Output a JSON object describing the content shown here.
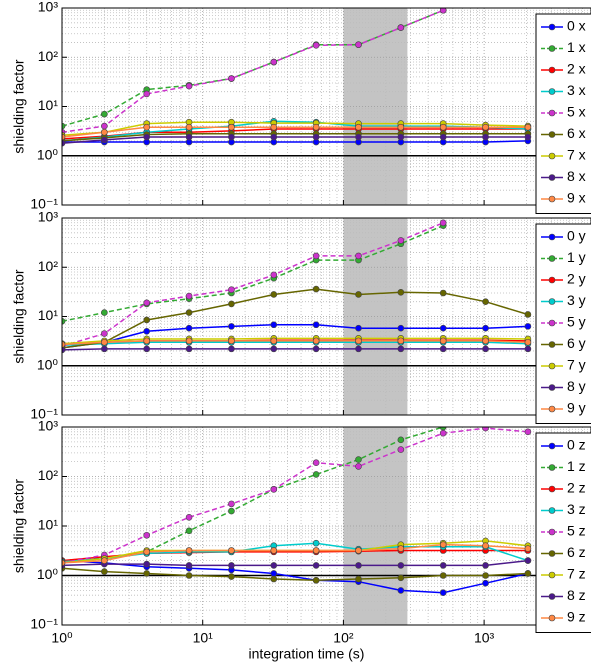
{
  "chart_data": [
    {
      "type": "line",
      "y_label": "shielding factor",
      "log_x": true,
      "log_y": true,
      "grid": true,
      "legend": "right",
      "hline": 1,
      "shaded_region": [
        100,
        285
      ],
      "x": [
        1,
        2,
        4,
        8,
        16,
        32,
        64,
        128,
        256,
        512,
        1024,
        2048
      ],
      "xlim": [
        1,
        5750
      ],
      "xticks": [
        1,
        10,
        100,
        1000
      ],
      "ylim": [
        0.1,
        1000
      ],
      "yticks": [
        {
          "value": 0.1,
          "label": "10⁻¹"
        },
        {
          "value": 1,
          "label": "10⁰"
        },
        {
          "value": 10,
          "label": "10¹"
        },
        {
          "value": 100,
          "label": "10²"
        },
        {
          "value": 1000,
          "label": "10³"
        }
      ],
      "series": [
        {
          "name": "0 x",
          "color": "#0000ff",
          "dashed": false,
          "values": [
            1.9,
            1.9,
            1.9,
            1.9,
            1.9,
            1.9,
            1.9,
            1.9,
            1.9,
            1.9,
            1.9,
            2.0
          ]
        },
        {
          "name": "1 x",
          "color": "#33aa33",
          "dashed": true,
          "values": [
            4,
            7,
            22,
            27,
            37,
            80,
            180,
            180,
            400,
            900,
            null,
            null
          ]
        },
        {
          "name": "2 x",
          "color": "#ff0000",
          "dashed": false,
          "values": [
            2.2,
            2.5,
            3,
            3,
            3.2,
            3.5,
            3.5,
            3.5,
            3.5,
            3.5,
            3.5,
            3.5
          ]
        },
        {
          "name": "3 x",
          "color": "#00cccc",
          "dashed": false,
          "values": [
            2.0,
            2.4,
            3,
            3.5,
            4,
            5,
            4.8,
            4,
            4,
            4,
            3.8,
            3.5
          ]
        },
        {
          "name": "5 x",
          "color": "#cc33cc",
          "dashed": true,
          "values": [
            3,
            4,
            18,
            26,
            37,
            80,
            175,
            180,
            400,
            900,
            null,
            null
          ]
        },
        {
          "name": "6 x",
          "color": "#666600",
          "dashed": false,
          "values": [
            2.0,
            2.3,
            2.7,
            2.8,
            2.8,
            2.8,
            2.8,
            2.8,
            2.8,
            2.8,
            2.8,
            2.8
          ]
        },
        {
          "name": "7 x",
          "color": "#cccc00",
          "dashed": false,
          "values": [
            2.6,
            3,
            4.5,
            4.8,
            4.8,
            4.6,
            4.6,
            4.5,
            4.5,
            4.5,
            4.2,
            4.0
          ]
        },
        {
          "name": "8 x",
          "color": "#4b1a8a",
          "dashed": false,
          "values": [
            1.8,
            2.1,
            2.4,
            2.4,
            2.4,
            2.4,
            2.4,
            2.4,
            2.4,
            2.4,
            2.4,
            2.4
          ]
        },
        {
          "name": "9 x",
          "color": "#ff8844",
          "dashed": false,
          "values": [
            2.4,
            3,
            3.8,
            3.8,
            3.8,
            3.8,
            3.8,
            3.8,
            3.8,
            3.8,
            3.8,
            3.8
          ]
        }
      ]
    },
    {
      "type": "line",
      "y_label": "shielding factor",
      "log_x": true,
      "log_y": true,
      "grid": true,
      "legend": "right",
      "hline": 1,
      "shaded_region": [
        100,
        285
      ],
      "x": [
        1,
        2,
        4,
        8,
        16,
        32,
        64,
        128,
        256,
        512,
        1024,
        2048
      ],
      "xlim": [
        1,
        5750
      ],
      "xticks": [
        1,
        10,
        100,
        1000
      ],
      "ylim": [
        0.1,
        1000
      ],
      "yticks": [
        {
          "value": 0.1,
          "label": "10⁻¹"
        },
        {
          "value": 1,
          "label": "10⁰"
        },
        {
          "value": 10,
          "label": "10¹"
        },
        {
          "value": 100,
          "label": "10²"
        },
        {
          "value": 1000,
          "label": "10³"
        }
      ],
      "series": [
        {
          "name": "0 y",
          "color": "#0000ff",
          "dashed": false,
          "values": [
            2.3,
            3,
            5,
            5.8,
            6.3,
            6.8,
            6.8,
            5.8,
            5.8,
            5.8,
            5.8,
            6.3
          ]
        },
        {
          "name": "1 y",
          "color": "#33aa33",
          "dashed": true,
          "values": [
            8,
            12,
            18,
            23,
            30,
            60,
            140,
            140,
            300,
            700,
            null,
            null
          ]
        },
        {
          "name": "2 y",
          "color": "#ff0000",
          "dashed": false,
          "values": [
            2.8,
            3,
            3.2,
            3.2,
            3.2,
            3.3,
            3.3,
            3.3,
            3.3,
            3.3,
            3.3,
            3.2
          ]
        },
        {
          "name": "3 y",
          "color": "#00cccc",
          "dashed": false,
          "values": [
            2.6,
            2.8,
            3,
            3,
            3,
            3,
            3,
            3,
            3,
            3,
            3,
            2.8
          ]
        },
        {
          "name": "5 y",
          "color": "#cc33cc",
          "dashed": true,
          "values": [
            2.5,
            4.5,
            19,
            26,
            35,
            70,
            170,
            170,
            350,
            800,
            null,
            null
          ]
        },
        {
          "name": "6 y",
          "color": "#666600",
          "dashed": false,
          "values": [
            2.3,
            3,
            8.5,
            12,
            18,
            28,
            36,
            28,
            31,
            30,
            20,
            11
          ]
        },
        {
          "name": "7 y",
          "color": "#cccc00",
          "dashed": false,
          "values": [
            2.8,
            3.2,
            3.5,
            3.5,
            3.5,
            3.6,
            3.6,
            3.6,
            3.6,
            3.6,
            3.6,
            3.5
          ]
        },
        {
          "name": "8 y",
          "color": "#4b1a8a",
          "dashed": false,
          "values": [
            2.1,
            2.2,
            2.2,
            2.2,
            2.2,
            2.2,
            2.2,
            2.2,
            2.2,
            2.2,
            2.2,
            2.2
          ]
        },
        {
          "name": "9 y",
          "color": "#ff8844",
          "dashed": false,
          "values": [
            2.7,
            3,
            3.2,
            3.2,
            3.2,
            3.2,
            3.2,
            3.2,
            3.2,
            3.2,
            3.2,
            3.0
          ]
        }
      ]
    },
    {
      "type": "line",
      "x_label": "integration time (s)",
      "y_label": "shielding factor",
      "log_x": true,
      "log_y": true,
      "grid": true,
      "legend": "right",
      "hline": 1,
      "shaded_region": [
        100,
        285
      ],
      "x": [
        1,
        2,
        4,
        8,
        16,
        32,
        64,
        128,
        256,
        512,
        1024,
        2048
      ],
      "xlim": [
        1,
        5750
      ],
      "xticks": [
        {
          "value": 1,
          "label": "10⁰"
        },
        {
          "value": 10,
          "label": "10¹"
        },
        {
          "value": 100,
          "label": "10²"
        },
        {
          "value": 1000,
          "label": "10³"
        }
      ],
      "ylim": [
        0.1,
        1000
      ],
      "yticks": [
        {
          "value": 0.1,
          "label": "10⁻¹"
        },
        {
          "value": 1,
          "label": "10⁰"
        },
        {
          "value": 10,
          "label": "10¹"
        },
        {
          "value": 100,
          "label": "10²"
        },
        {
          "value": 1000,
          "label": "10³"
        }
      ],
      "series": [
        {
          "name": "0 z",
          "color": "#0000ff",
          "dashed": false,
          "values": [
            2,
            1.8,
            1.5,
            1.4,
            1.3,
            1.1,
            0.8,
            0.75,
            0.5,
            0.45,
            0.7,
            1.1
          ]
        },
        {
          "name": "1 z",
          "color": "#33aa33",
          "dashed": true,
          "values": [
            2,
            2.3,
            3,
            8,
            20,
            55,
            110,
            220,
            550,
            1000,
            null,
            null
          ]
        },
        {
          "name": "2 z",
          "color": "#ff0000",
          "dashed": false,
          "values": [
            2,
            2.4,
            2.8,
            2.9,
            3,
            3,
            3,
            3.1,
            3.2,
            3.2,
            3.2,
            3.2
          ]
        },
        {
          "name": "3 z",
          "color": "#00cccc",
          "dashed": false,
          "values": [
            1.9,
            2.2,
            2.8,
            3,
            3,
            4,
            4.5,
            3.4,
            3.8,
            3.8,
            3.8,
            2.0
          ]
        },
        {
          "name": "5 z",
          "color": "#cc33cc",
          "dashed": true,
          "values": [
            1.8,
            2.6,
            6.5,
            15,
            28,
            55,
            190,
            160,
            350,
            750,
            950,
            800
          ]
        },
        {
          "name": "6 z",
          "color": "#666600",
          "dashed": false,
          "values": [
            1.4,
            1.2,
            1.1,
            1.0,
            0.95,
            0.85,
            0.8,
            0.85,
            0.9,
            1.0,
            1.0,
            1.1
          ]
        },
        {
          "name": "7 z",
          "color": "#cccc00",
          "dashed": false,
          "values": [
            1.8,
            2.2,
            3.2,
            3.2,
            3.2,
            3.2,
            3.2,
            3.2,
            4.2,
            4.5,
            5,
            4
          ]
        },
        {
          "name": "8 z",
          "color": "#4b1a8a",
          "dashed": false,
          "values": [
            1.6,
            1.7,
            1.7,
            1.6,
            1.6,
            1.6,
            1.6,
            1.6,
            1.6,
            1.6,
            1.6,
            2
          ]
        },
        {
          "name": "9 z",
          "color": "#ff8844",
          "dashed": false,
          "values": [
            1.8,
            2,
            3,
            3.2,
            3.2,
            3.2,
            3.2,
            3.2,
            3.5,
            4.2,
            4,
            3.5
          ]
        }
      ]
    }
  ]
}
